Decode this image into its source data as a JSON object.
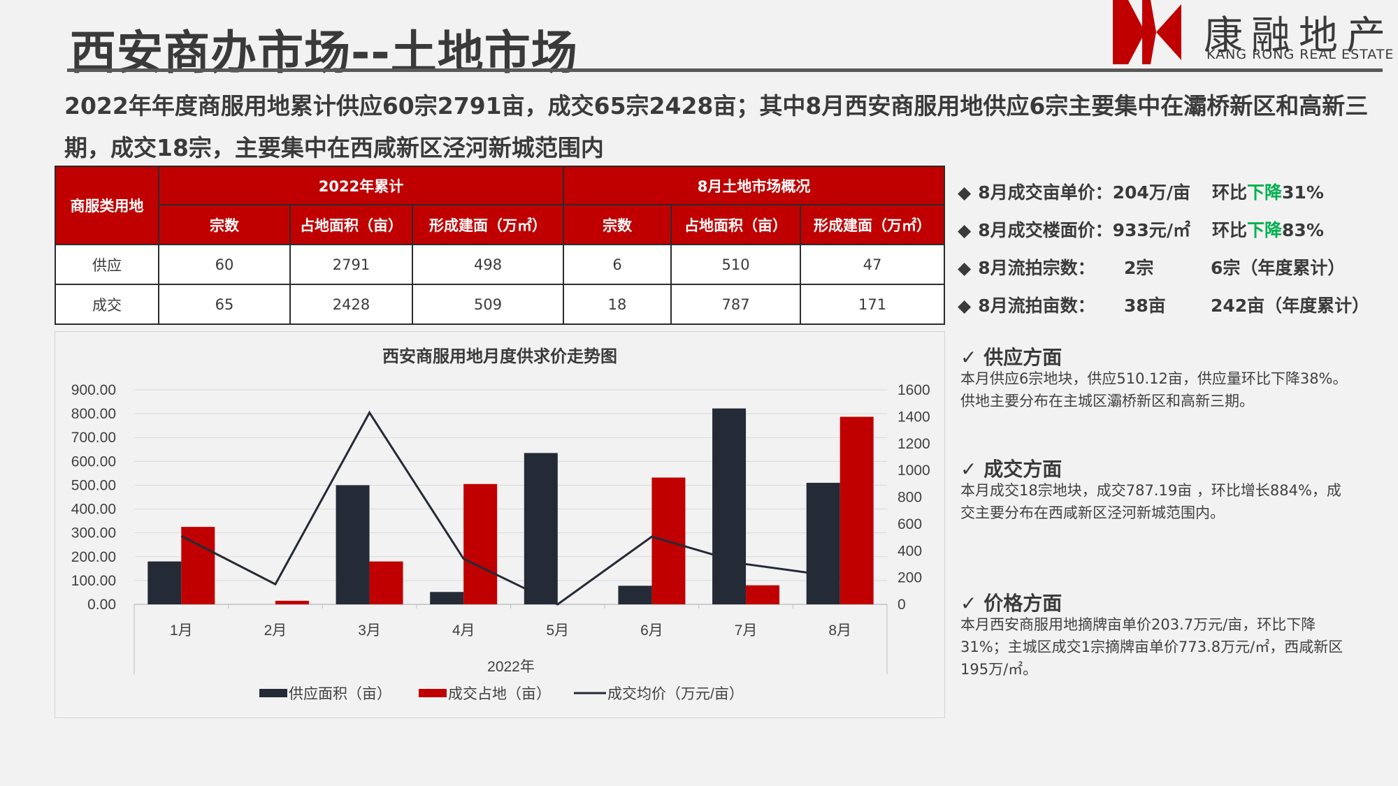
{
  "header": {
    "title": "西安商办市场--土地市场",
    "logo_cn": "康融地产",
    "logo_en": "KANG RONG REAL ESTATE"
  },
  "headline": "2022年年度商服用地累计供应60宗2791亩，成交65宗2428亩；其中8月西安商服用地供应6宗主要集中在灞桥新区和高新三期，成交18宗，主要集中在西咸新区泾河新城范围内",
  "table": {
    "corner": "商服类用地",
    "group1": "2022年累计",
    "group2": "8月土地市场概况",
    "columns": [
      "宗数",
      "占地面积（亩）",
      "形成建面（万㎡）",
      "宗数",
      "占地面积（亩）",
      "形成建面（万㎡）"
    ],
    "rows": [
      {
        "label": "供应",
        "cells": [
          "60",
          "2791",
          "498",
          "6",
          "510",
          "47"
        ]
      },
      {
        "label": "成交",
        "cells": [
          "65",
          "2428",
          "509",
          "18",
          "787",
          "171"
        ]
      }
    ]
  },
  "kpis": [
    {
      "label": "8月成交亩单价：204万/亩",
      "ring_prefix": "环比",
      "ring_dir": "下降",
      "ring_val": "31%"
    },
    {
      "label": "8月成交楼面价：933元/㎡",
      "ring_prefix": "环比",
      "ring_dir": "下降",
      "ring_val": "83%"
    },
    {
      "label": "8月流拍宗数：",
      "value": "2宗",
      "extra": "6宗（年度累计）"
    },
    {
      "label": "8月流拍亩数：",
      "value": "38亩",
      "extra": "242亩（年度累计）"
    }
  ],
  "sections": [
    {
      "title": "供应方面",
      "text": "本月供应6宗地块，供应510.12亩，供应量环比下降38%。供地主要分布在主城区灞桥新区和高新三期。"
    },
    {
      "title": "成交方面",
      "text": "本月成交18宗地块，成交787.19亩 ，环比增长884%，成交主要分布在西咸新区泾河新城范围内。"
    },
    {
      "title": "价格方面",
      "text": "本月西安商服用地摘牌亩单价203.7万元/亩，环比下降31%；主城区成交1宗摘牌亩单价773.8万元/㎡，西咸新区195万/㎡。"
    }
  ],
  "colors": {
    "red": "#c00000",
    "navy": "#242a36",
    "green": "#00b050",
    "text": "#3a3a3a"
  },
  "chart_data": {
    "type": "bar",
    "title": "西安商服用地月度供求价走势图",
    "xlabel": "2022年",
    "categories": [
      "1月",
      "2月",
      "3月",
      "4月",
      "5月",
      "6月",
      "7月",
      "8月"
    ],
    "y_left": {
      "ylim": [
        0,
        900
      ],
      "ticks": [
        "900.00",
        "800.00",
        "700.00",
        "600.00",
        "500.00",
        "400.00",
        "300.00",
        "200.00",
        "100.00",
        "0.00"
      ]
    },
    "y_right": {
      "ylim": [
        0,
        1600
      ],
      "ticks": [
        "1600",
        "1400",
        "1200",
        "1000",
        "800",
        "600",
        "400",
        "200",
        "0"
      ]
    },
    "series": [
      {
        "name": "供应面积（亩）",
        "kind": "bar",
        "axis": "left",
        "color": "#242a36",
        "values": [
          180,
          0,
          500,
          52,
          635,
          78,
          822,
          510
        ]
      },
      {
        "name": "成交占地（亩）",
        "kind": "bar",
        "axis": "left",
        "color": "#c00000",
        "values": [
          325,
          15,
          180,
          505,
          0,
          532,
          80,
          787
        ]
      },
      {
        "name": "成交均价（万元/亩）",
        "kind": "line",
        "axis": "right",
        "color": "#242a36",
        "values": [
          510,
          150,
          1430,
          340,
          0,
          505,
          300,
          204
        ]
      }
    ],
    "grid": true,
    "legend": "bottom"
  }
}
